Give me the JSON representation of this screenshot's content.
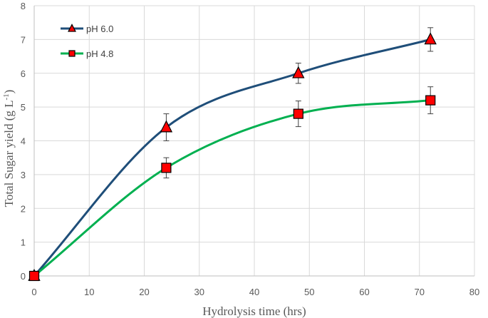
{
  "chart_data": {
    "type": "line",
    "title": "",
    "xlabel": "Hydrolysis time (hrs)",
    "ylabel_main": "Total Sugar yield (g L",
    "ylabel_sup": "-1",
    "ylabel_tail": ")",
    "xlim": [
      0,
      80
    ],
    "ylim": [
      0,
      8
    ],
    "x_ticks": [
      0,
      10,
      20,
      30,
      40,
      50,
      60,
      70,
      80
    ],
    "y_ticks": [
      0,
      1,
      2,
      3,
      4,
      5,
      6,
      7,
      8
    ],
    "grid": true,
    "legend_position": "top-left",
    "x": [
      0,
      24,
      48,
      72
    ],
    "series": [
      {
        "name": "pH 6.0",
        "values": [
          0,
          4.4,
          6.0,
          7.0
        ],
        "errors": [
          0,
          0.4,
          0.3,
          0.35
        ],
        "color": "#1f4e79",
        "marker": "triangle",
        "marker_color": "#ff0000"
      },
      {
        "name": "pH 4.8",
        "values": [
          0,
          3.2,
          4.8,
          5.2
        ],
        "errors": [
          0,
          0.3,
          0.38,
          0.4
        ],
        "color": "#00b050",
        "marker": "square",
        "marker_color": "#ff0000"
      }
    ]
  }
}
